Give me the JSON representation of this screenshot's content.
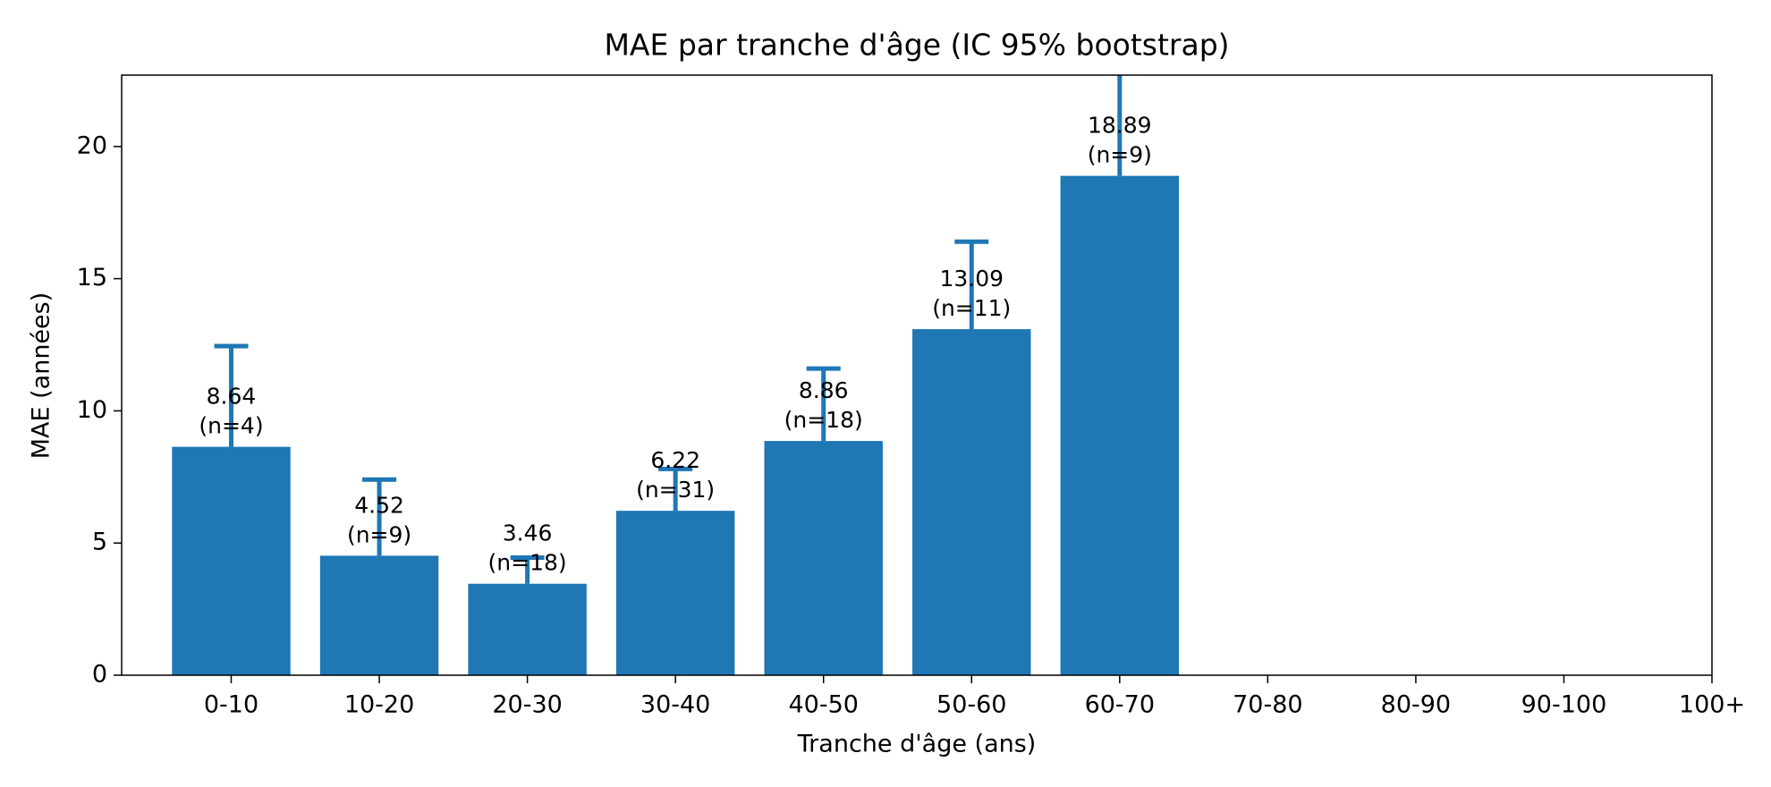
{
  "chart_data": {
    "type": "bar",
    "title": "MAE par tranche d'âge (IC 95% bootstrap)",
    "x_label": "Tranche d'âge (ans)",
    "y_label": "MAE (années)",
    "categories": [
      "0-10",
      "10-20",
      "20-30",
      "30-40",
      "40-50",
      "50-60",
      "60-70",
      "70-80",
      "80-90",
      "90-100",
      "100+"
    ],
    "values": [
      8.64,
      4.52,
      3.46,
      6.22,
      8.86,
      13.09,
      18.89,
      null,
      null,
      null,
      null
    ],
    "count_labels": [
      "(n=4)",
      "(n=9)",
      "(n=18)",
      "(n=31)",
      "(n=18)",
      "(n=11)",
      "(n=9)",
      null,
      null,
      null,
      null
    ],
    "ci_upper": [
      12.45,
      7.4,
      4.45,
      7.8,
      11.6,
      16.4,
      24.0,
      null,
      null,
      null,
      null
    ],
    "color": "#1f77b4",
    "ylim": [
      0,
      22.7
    ],
    "yticks": [
      0,
      5,
      10,
      15,
      20
    ],
    "grid": false
  }
}
